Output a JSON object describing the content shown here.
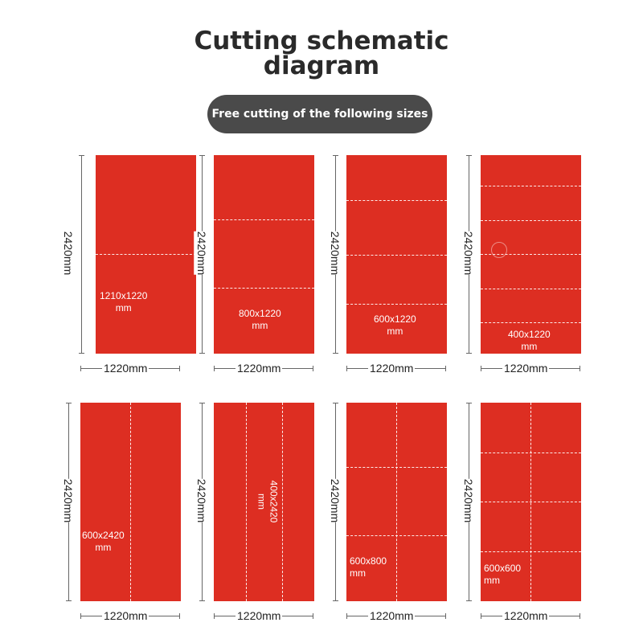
{
  "header": {
    "title_line1": "Cutting schematic",
    "title_line2": "diagram",
    "subtitle": "Free cutting of the following sizes"
  },
  "colors": {
    "panel": "#dd2e22",
    "pill": "#4a4a4a",
    "cut_line": "#ffffff"
  },
  "panels": [
    {
      "height_label": "2420mm",
      "width_label": "1220mm",
      "size_line1": "1210x1220",
      "size_line2": "mm",
      "cuts": "horizontal",
      "cut_count": 1
    },
    {
      "height_label": "2420mm",
      "width_label": "1220mm",
      "size_line1": "800x1220",
      "size_line2": "mm",
      "cuts": "horizontal",
      "cut_count": 2
    },
    {
      "height_label": "2420mm",
      "width_label": "1220mm",
      "size_line1": "600x1220",
      "size_line2": "mm",
      "cuts": "horizontal",
      "cut_count": 3
    },
    {
      "height_label": "2420mm",
      "width_label": "1220mm",
      "size_line1": "400x1220",
      "size_line2": "mm",
      "cuts": "horizontal",
      "cut_count": 5
    },
    {
      "height_label": "2420mm",
      "width_label": "1220mm",
      "size_line1": "600x2420",
      "size_line2": "mm",
      "cuts": "vertical",
      "cut_count": 1
    },
    {
      "height_label": "2420mm",
      "width_label": "1220mm",
      "size_line1": "400x2420",
      "size_line2": "mm",
      "cuts": "vertical",
      "cut_count": 2
    },
    {
      "height_label": "2420mm",
      "width_label": "1220mm",
      "size_line1": "600x800",
      "size_line2": "mm",
      "cuts": "grid",
      "cut_count": 3
    },
    {
      "height_label": "2420mm",
      "width_label": "1220mm",
      "size_line1": "600x600",
      "size_line2": "mm",
      "cuts": "grid",
      "cut_count": 4
    }
  ]
}
